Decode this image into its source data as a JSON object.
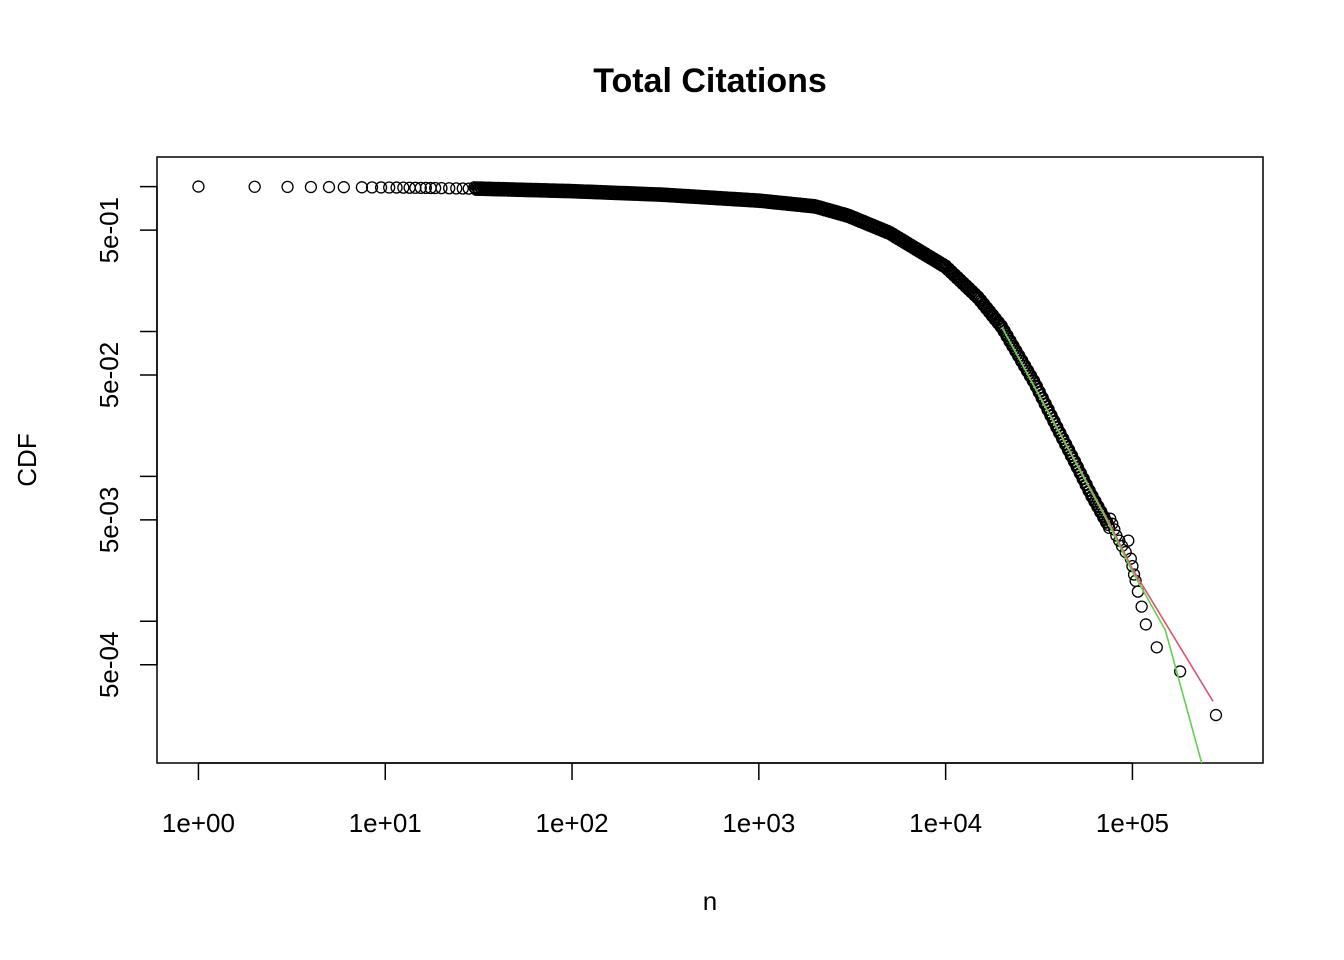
{
  "chart_data": {
    "type": "scatter",
    "title": "Total Citations",
    "xlabel": "n",
    "ylabel": "CDF",
    "log_x": true,
    "log_y": true,
    "xlim": [
      0.6,
      500000
    ],
    "ylim": [
      0.000105,
      1.6
    ],
    "grid": false,
    "x_ticks": [
      {
        "value": 1,
        "label": "1e+00"
      },
      {
        "value": 10,
        "label": "1e+01"
      },
      {
        "value": 100,
        "label": "1e+02"
      },
      {
        "value": 1000,
        "label": "1e+03"
      },
      {
        "value": 10000,
        "label": "1e+04"
      },
      {
        "value": 100000,
        "label": "1e+05"
      }
    ],
    "y_ticks": [
      {
        "value": 1,
        "label": ""
      },
      {
        "value": 0.5,
        "label": "5e-01"
      },
      {
        "value": 0.1,
        "label": ""
      },
      {
        "value": 0.05,
        "label": "5e-02"
      },
      {
        "value": 0.01,
        "label": ""
      },
      {
        "value": 0.005,
        "label": "5e-03"
      },
      {
        "value": 0.001,
        "label": ""
      },
      {
        "value": 0.0005,
        "label": "5e-04"
      }
    ],
    "series": [
      {
        "kind": "points",
        "color": "#000000",
        "points": [
          [
            1,
            1.0
          ],
          [
            2,
            0.997
          ],
          [
            3,
            0.995
          ],
          [
            4,
            0.993
          ],
          [
            5,
            0.992
          ],
          [
            6,
            0.99
          ],
          [
            7.5,
            0.988
          ],
          [
            8.5,
            0.987
          ],
          [
            9.5,
            0.986
          ],
          [
            10.5,
            0.985
          ],
          [
            11.5,
            0.984
          ],
          [
            12.5,
            0.983
          ],
          [
            13.5,
            0.982
          ],
          [
            14.5,
            0.981
          ],
          [
            15.5,
            0.98
          ],
          [
            16.5,
            0.979
          ],
          [
            17.5,
            0.978
          ],
          [
            18.5,
            0.977
          ],
          [
            20,
            0.976
          ],
          [
            22,
            0.974
          ],
          [
            24,
            0.972
          ],
          [
            26,
            0.97
          ],
          [
            28,
            0.968
          ]
        ]
      },
      {
        "kind": "dense_points",
        "color": "#000000",
        "curve": [
          [
            30,
            0.97
          ],
          [
            100,
            0.93
          ],
          [
            300,
            0.88
          ],
          [
            1000,
            0.8
          ],
          [
            2000,
            0.73
          ],
          [
            3000,
            0.63
          ],
          [
            5000,
            0.48
          ],
          [
            10000,
            0.28
          ],
          [
            15000,
            0.17
          ],
          [
            20000,
            0.107
          ],
          [
            30000,
            0.044
          ],
          [
            40000,
            0.021
          ],
          [
            50000,
            0.012
          ],
          [
            60000,
            0.0075
          ],
          [
            75000,
            0.0045
          ]
        ]
      },
      {
        "kind": "points",
        "color": "#000000",
        "points": [
          [
            76000,
            0.0051
          ],
          [
            78000,
            0.0047
          ],
          [
            80000,
            0.0043
          ],
          [
            82000,
            0.0039
          ],
          [
            85000,
            0.0036
          ],
          [
            88000,
            0.0033
          ],
          [
            92000,
            0.003
          ],
          [
            95000,
            0.0036
          ],
          [
            98000,
            0.0027
          ],
          [
            100000,
            0.0024
          ],
          [
            102000,
            0.0021
          ],
          [
            104000,
            0.0019
          ],
          [
            107000,
            0.0016
          ],
          [
            112000,
            0.00126
          ],
          [
            118000,
            0.00095
          ],
          [
            135000,
            0.00066
          ],
          [
            180000,
            0.00045
          ],
          [
            280000,
            0.000225
          ]
        ]
      },
      {
        "kind": "line",
        "color": "#df536b",
        "points": [
          [
            20000,
            0.107
          ],
          [
            75000,
            0.0048
          ],
          [
            100000,
            0.0023
          ],
          [
            270000,
            0.00028
          ]
        ]
      },
      {
        "kind": "line",
        "color": "#61d04f",
        "points": [
          [
            20000,
            0.107
          ],
          [
            70000,
            0.0055
          ],
          [
            100000,
            0.0022
          ],
          [
            150000,
            0.00087
          ],
          [
            235000,
            0.000105
          ]
        ]
      }
    ]
  }
}
